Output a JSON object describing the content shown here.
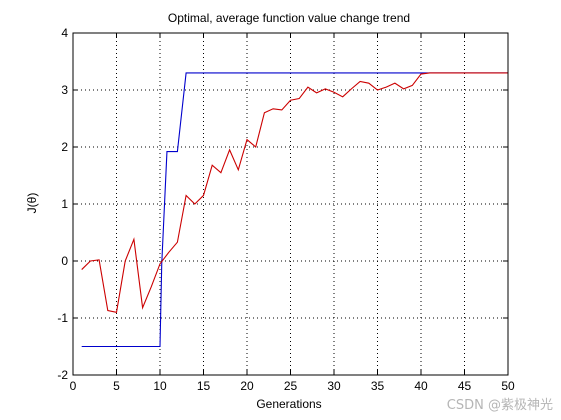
{
  "chart_data": {
    "type": "line",
    "title": "Optimal, average function value change trend",
    "xlabel": "Generations",
    "ylabel": "J(θ)",
    "xlim": [
      0,
      50
    ],
    "ylim": [
      -2,
      4
    ],
    "grid": true,
    "xticks": [
      0,
      5,
      10,
      15,
      20,
      25,
      30,
      35,
      40,
      45,
      50
    ],
    "yticks": [
      -2,
      -1,
      0,
      1,
      2,
      3,
      4
    ],
    "series": [
      {
        "color": "#0000cc",
        "x": [
          1,
          2,
          3,
          4,
          5,
          6,
          7,
          8,
          9,
          10,
          10.2,
          10.8,
          11,
          12,
          13,
          14,
          15,
          16,
          17,
          18,
          19,
          20,
          21,
          22,
          23,
          24,
          25,
          26,
          27,
          28,
          29,
          30,
          31,
          32,
          33,
          34,
          35,
          36,
          37,
          38,
          39,
          40,
          41,
          42,
          43,
          44,
          45,
          46,
          47,
          48,
          49,
          50
        ],
        "values": [
          -1.5,
          -1.5,
          -1.5,
          -1.5,
          -1.5,
          -1.5,
          -1.5,
          -1.5,
          -1.5,
          -1.5,
          -0.05,
          1.92,
          1.92,
          1.92,
          3.3,
          3.3,
          3.3,
          3.3,
          3.3,
          3.3,
          3.3,
          3.3,
          3.3,
          3.3,
          3.3,
          3.3,
          3.3,
          3.3,
          3.3,
          3.3,
          3.3,
          3.3,
          3.3,
          3.3,
          3.3,
          3.3,
          3.3,
          3.3,
          3.3,
          3.3,
          3.3,
          3.3,
          3.3,
          3.3,
          3.3,
          3.3,
          3.3,
          3.3,
          3.3,
          3.3,
          3.3,
          3.3
        ]
      },
      {
        "color": "#cc0000",
        "x": [
          1,
          2,
          3,
          4,
          5,
          6,
          7,
          8,
          9,
          10,
          11,
          12,
          13,
          14,
          15,
          16,
          17,
          18,
          19,
          20,
          21,
          22,
          23,
          24,
          25,
          26,
          27,
          28,
          29,
          30,
          31,
          32,
          33,
          34,
          35,
          36,
          37,
          38,
          39,
          40,
          41,
          42,
          43,
          44,
          45,
          46,
          47,
          48,
          49,
          50
        ],
        "values": [
          -0.15,
          0.0,
          0.02,
          -0.87,
          -0.9,
          0.0,
          0.38,
          -0.82,
          -0.45,
          -0.05,
          0.15,
          0.33,
          1.15,
          1.0,
          1.15,
          1.68,
          1.55,
          1.95,
          1.6,
          2.13,
          2.0,
          2.6,
          2.67,
          2.65,
          2.82,
          2.85,
          3.05,
          2.95,
          3.02,
          2.96,
          2.88,
          3.02,
          3.15,
          3.12,
          3.0,
          3.05,
          3.12,
          3.02,
          3.08,
          3.28,
          3.3,
          3.3,
          3.3,
          3.3,
          3.3,
          3.3,
          3.3,
          3.3,
          3.3,
          3.3
        ]
      }
    ]
  },
  "watermark": {
    "text": "CSDN @紫极神光"
  }
}
